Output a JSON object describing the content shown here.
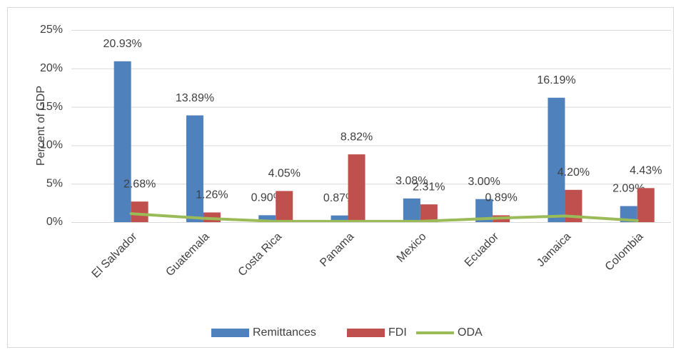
{
  "chart_data": {
    "type": "bar",
    "y_label": "Percent of GDP",
    "categories": [
      "El Salvador",
      "Guatemala",
      "Costa Rica",
      "Panama",
      "Mexico",
      "Ecuador",
      "Jamaica",
      "Colombia"
    ],
    "series": [
      {
        "name": "Remittances",
        "color": "#4f81bd",
        "values": [
          20.93,
          13.89,
          0.9,
          0.87,
          3.08,
          3.0,
          16.19,
          2.09
        ],
        "value_labels": [
          "20.93%",
          "13.89%",
          "0.90%",
          "0.87%",
          "3.08%",
          "3.00%",
          "16.19%",
          "2.09%"
        ]
      },
      {
        "name": "FDI",
        "color": "#c0504d",
        "values": [
          2.68,
          1.26,
          4.05,
          8.82,
          2.31,
          0.89,
          4.2,
          4.43
        ],
        "value_labels": [
          "2.68%",
          "1.26%",
          "4.05%",
          "8.82%",
          "2.31%",
          "0.89%",
          "4.20%",
          "4.43%"
        ]
      },
      {
        "name": "ODA",
        "color": "#9bbb59",
        "type": "line",
        "values": [
          1.1,
          0.5,
          0.1,
          0.1,
          0.1,
          0.5,
          0.8,
          0.2
        ]
      }
    ],
    "ylim": [
      0,
      25
    ],
    "yticks": [
      {
        "value": 0,
        "label": "0%"
      },
      {
        "value": 5,
        "label": "5%"
      },
      {
        "value": 10,
        "label": "10%"
      },
      {
        "value": 15,
        "label": "15%"
      },
      {
        "value": 20,
        "label": "20%"
      },
      {
        "value": 25,
        "label": "25%"
      }
    ],
    "grid": true,
    "legend": "bottom"
  }
}
